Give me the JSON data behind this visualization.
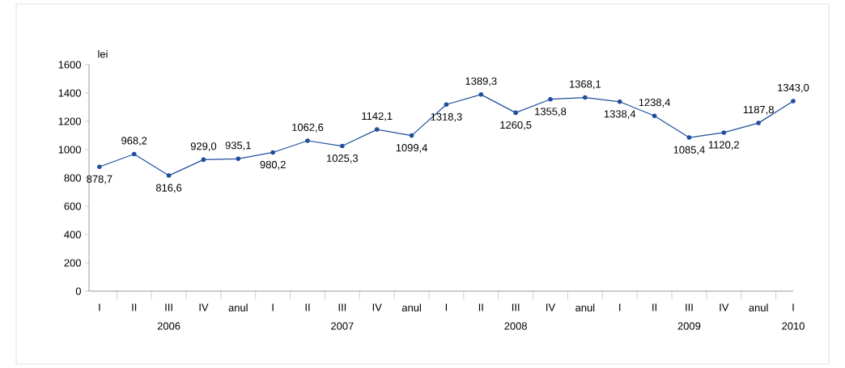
{
  "chart_data": {
    "type": "line",
    "ylabel": "lei",
    "categories": [
      "I",
      "II",
      "III",
      "IV",
      "anul",
      "I",
      "II",
      "III",
      "IV",
      "anul",
      "I",
      "II",
      "III",
      "IV",
      "anul",
      "I",
      "II",
      "III",
      "IV",
      "anul",
      "I"
    ],
    "values": [
      878.7,
      968.2,
      816.6,
      929.0,
      935.1,
      980.2,
      1062.6,
      1025.3,
      1142.1,
      1099.4,
      1318.3,
      1389.3,
      1260.5,
      1355.8,
      1368.1,
      1338.4,
      1238.4,
      1085.4,
      1120.2,
      1187.8,
      1343.0
    ],
    "value_labels": [
      "878,7",
      "968,2",
      "816,6",
      "929,0",
      "935,1",
      "980,2",
      "1062,6",
      "1025,3",
      "1142,1",
      "1099,4",
      "1318,3",
      "1389,3",
      "1260,5",
      "1355,8",
      "1368,1",
      "1338,4",
      "1238,4",
      "1085,4",
      "1120,2",
      "1187,8",
      "1343,0"
    ],
    "color": "#1f4e9c",
    "marker": "circle",
    "line_style": "solid",
    "grid": false,
    "ylim": [
      0,
      1600
    ],
    "yticks": [
      0,
      200,
      400,
      600,
      800,
      1000,
      1200,
      1400,
      1600
    ],
    "annotations": [
      "2006",
      "2007",
      "2008",
      "2009",
      "2010"
    ]
  }
}
